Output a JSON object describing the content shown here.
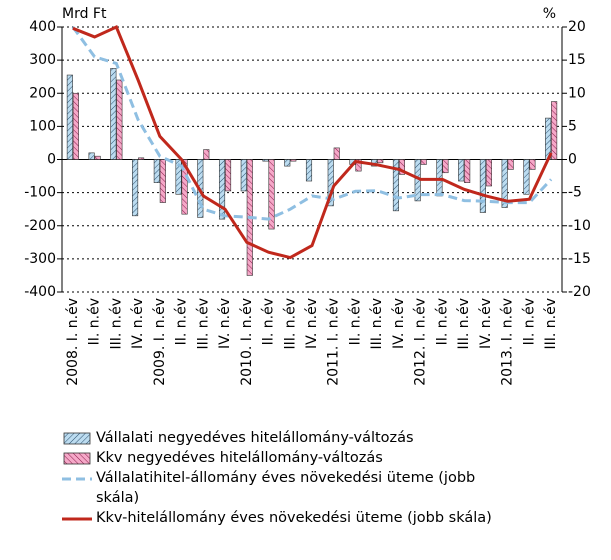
{
  "chart_data": {
    "type": "bar-line",
    "y_label": "Mrd Ft",
    "y2_label": "%",
    "categories": [
      "2008. I. n.év",
      "II. n.év",
      "III. n.év",
      "IV. n.év",
      "2009. I. n.év",
      "II. n.év",
      "III. n.év",
      "IV. n.év",
      "2010. I. n.év",
      "II. n.év",
      "III. n.év",
      "IV. n.év",
      "2011. I. n.év",
      "II. n.év",
      "III. n.év",
      "IV. n.év",
      "2012. I. n.év",
      "II. n.év",
      "III. n.év",
      "IV. n.év",
      "2013. I. n.év",
      "II. n.év",
      "III. n.év"
    ],
    "series": [
      {
        "name": "Vállalati negyedéves hitelállomány-változás",
        "type": "bar",
        "color": "#bcdcf0",
        "values": [
          255,
          20,
          275,
          -170,
          -70,
          -105,
          -175,
          -180,
          -95,
          -5,
          -20,
          -65,
          -140,
          -15,
          -20,
          -155,
          -125,
          -110,
          -65,
          -160,
          -145,
          -105,
          125
        ]
      },
      {
        "name": "Kkv negyedéves hitelállomány-változás",
        "type": "bar",
        "color": "#f5a8c8",
        "values": [
          200,
          10,
          240,
          5,
          -130,
          -165,
          30,
          -95,
          -350,
          -210,
          -5,
          0,
          35,
          -35,
          -10,
          -45,
          -15,
          -40,
          -70,
          -80,
          -30,
          -30,
          175
        ]
      },
      {
        "name": "Vállalatihitel-állomány éves növekedési üteme (jobb skála)",
        "type": "line",
        "axis": "y2",
        "color": "#8fbfe2",
        "dashed": true,
        "values": [
          20,
          15.5,
          14.5,
          6,
          0.5,
          -1,
          -7.5,
          -8.5,
          -8.7,
          -9,
          -7.5,
          -5.5,
          -6,
          -4.8,
          -4.7,
          -5.8,
          -5.3,
          -5.3,
          -6.2,
          -6.3,
          -6.5,
          -6.5,
          -3
        ]
      },
      {
        "name": "Kkv-hitelállomány éves növekedési üteme (jobb skála)",
        "type": "line",
        "axis": "y2",
        "color": "#c0281c",
        "dashed": false,
        "values": [
          19.8,
          18.5,
          20,
          12,
          3.5,
          0,
          -5.5,
          -7.5,
          -12.5,
          -14,
          -14.8,
          -13,
          -4,
          -0.3,
          -0.8,
          -1.5,
          -3,
          -3,
          -4.5,
          -5.5,
          -6.3,
          -6,
          1
        ]
      }
    ],
    "ylim": [
      -400,
      400
    ],
    "yticks": [
      -400,
      -300,
      -200,
      -100,
      0,
      100,
      200,
      300,
      400
    ],
    "y2lim": [
      -20,
      20
    ],
    "y2ticks": [
      -20,
      -15,
      -10,
      -5,
      0,
      5,
      10,
      15,
      20
    ],
    "grid": true
  }
}
